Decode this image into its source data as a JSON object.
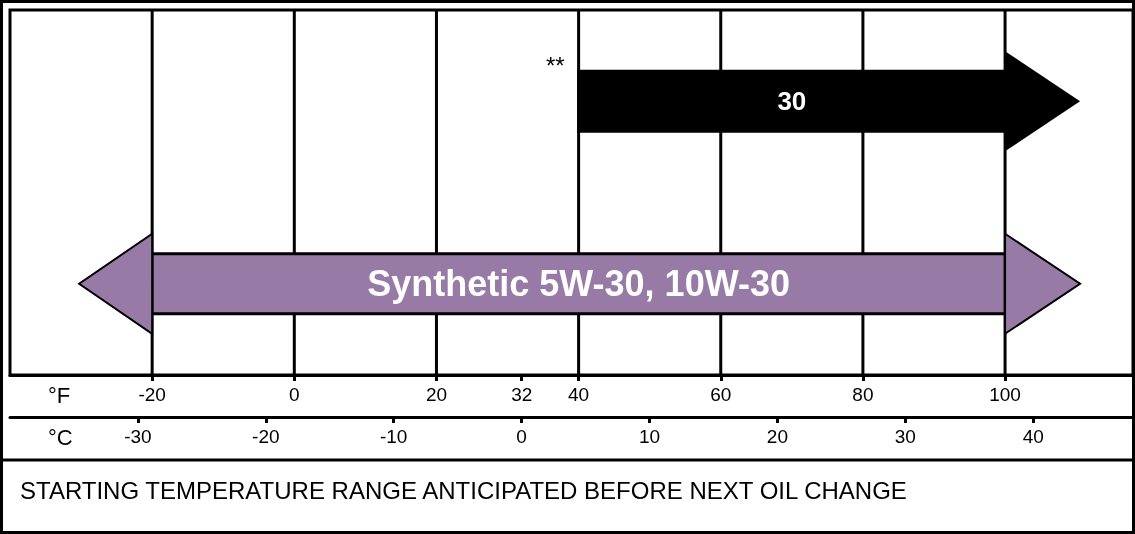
{
  "chart_data": {
    "type": "bar",
    "orientation": "horizontal",
    "categories": [
      "30",
      "Synthetic 5W-30, 10W-30"
    ],
    "base": [
      40,
      -20
    ],
    "values": [
      60,
      120
    ],
    "colors": [
      "#000000",
      "#977ba6"
    ],
    "xlim": [
      -40,
      118
    ],
    "xticks": [
      -20,
      0,
      20,
      32,
      40,
      60,
      80,
      100
    ],
    "x2lim": [
      -40,
      47.8
    ],
    "x2ticks": [
      -30,
      -20,
      -10,
      0,
      10,
      20,
      30,
      40
    ],
    "xlabel": "°F",
    "x2label": "°C",
    "ref_lines": [
      {
        "axis": "x",
        "value": -20,
        "color": "#000000"
      },
      {
        "axis": "x",
        "value": 0,
        "color": "#000000"
      },
      {
        "axis": "x",
        "value": 20,
        "color": "#000000"
      },
      {
        "axis": "x",
        "value": 40,
        "color": "#000000"
      },
      {
        "axis": "x",
        "value": 60,
        "color": "#000000"
      },
      {
        "axis": "x",
        "value": 80,
        "color": "#000000"
      },
      {
        "axis": "x",
        "value": 100,
        "color": "#000000"
      }
    ],
    "annotations": [
      "STARTING TEMPERATURE RANGE ANTICIPATED BEFORE NEXT OIL CHANGE",
      "**"
    ]
  }
}
